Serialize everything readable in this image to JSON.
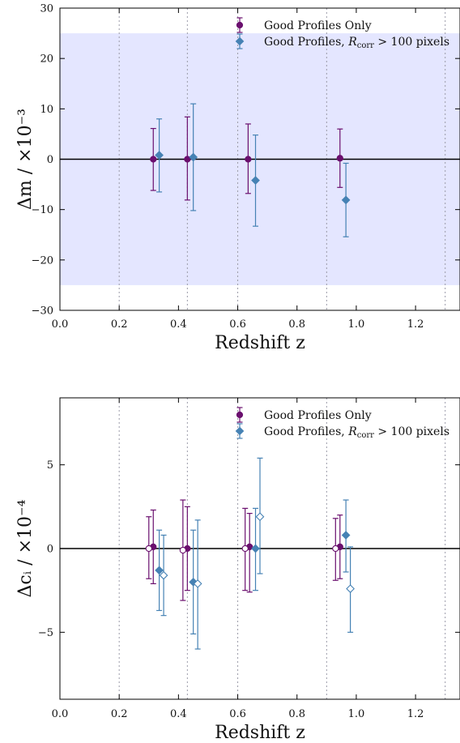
{
  "colors": {
    "purple": "#6a0f6e",
    "blue": "#4682b4",
    "band": "#e4e6ff",
    "vline": "#9a9aa8",
    "zero": "#000000"
  },
  "chart_data": [
    {
      "type": "scatter",
      "xlabel": "Redshift z",
      "ylabel": "Δm / ×10⁻³",
      "xlim": [
        0.0,
        1.35
      ],
      "ylim": [
        -30,
        30
      ],
      "xticks": [
        "0.0",
        "0.2",
        "0.4",
        "0.6",
        "0.8",
        "1.0",
        "1.2"
      ],
      "yticks": [
        "30",
        "20",
        "10",
        "0",
        "−10",
        "−20",
        "−30"
      ],
      "band": [
        -25,
        25
      ],
      "zero_line": 0,
      "vlines": [
        0.2,
        0.43,
        0.6,
        0.9,
        1.3
      ],
      "legend_position": "top-right",
      "legend": [
        "Good Profiles Only",
        "Good Profiles, R_corr > 100 pixels"
      ],
      "series": [
        {
          "name": "Good Profiles Only",
          "marker": "circle",
          "filled": true,
          "color": "purple",
          "points": [
            {
              "x": 0.315,
              "y": 0.0,
              "lo": -6.2,
              "hi": 6.1
            },
            {
              "x": 0.43,
              "y": 0.0,
              "lo": -8.1,
              "hi": 8.4
            },
            {
              "x": 0.635,
              "y": 0.0,
              "lo": -6.8,
              "hi": 7.0
            },
            {
              "x": 0.945,
              "y": 0.2,
              "lo": -5.6,
              "hi": 6.0
            }
          ]
        },
        {
          "name": "Good Profiles, R_corr > 100 pixels",
          "marker": "diamond",
          "filled": true,
          "color": "blue",
          "points": [
            {
              "x": 0.335,
              "y": 0.8,
              "lo": -6.5,
              "hi": 8.0
            },
            {
              "x": 0.45,
              "y": 0.4,
              "lo": -10.2,
              "hi": 11.0
            },
            {
              "x": 0.66,
              "y": -4.2,
              "lo": -13.3,
              "hi": 4.8
            },
            {
              "x": 0.965,
              "y": -8.1,
              "lo": -15.4,
              "hi": -0.8
            }
          ]
        }
      ]
    },
    {
      "type": "scatter",
      "xlabel": "Redshift z",
      "ylabel": "Δcᵢ / ×10⁻⁴",
      "xlim": [
        0.0,
        1.35
      ],
      "ylim": [
        -9,
        9
      ],
      "xticks": [
        "0.0",
        "0.2",
        "0.4",
        "0.6",
        "0.8",
        "1.0",
        "1.2"
      ],
      "yticks": [
        "5",
        "0",
        "−5"
      ],
      "zero_line": 0,
      "vlines": [
        0.2,
        0.43,
        0.6,
        0.9,
        1.3
      ],
      "legend_position": "top-right",
      "legend": [
        "Good Profiles Only",
        "Good Profiles, R_corr > 100 pixels"
      ],
      "series": [
        {
          "name": "Good Profiles Only",
          "marker": "circle",
          "filled": true,
          "color": "purple",
          "points": [
            {
              "x": 0.315,
              "y": 0.1,
              "lo": -2.1,
              "hi": 2.3
            },
            {
              "x": 0.43,
              "y": 0.0,
              "lo": -2.5,
              "hi": 2.5
            },
            {
              "x": 0.64,
              "y": 0.1,
              "lo": -2.6,
              "hi": 2.1
            },
            {
              "x": 0.945,
              "y": 0.1,
              "lo": -1.8,
              "hi": 2.0
            }
          ]
        },
        {
          "name": "Good Profiles Only (open)",
          "marker": "circle",
          "filled": false,
          "color": "purple",
          "points": [
            {
              "x": 0.3,
              "y": 0.0,
              "lo": -1.8,
              "hi": 1.9
            },
            {
              "x": 0.415,
              "y": -0.1,
              "lo": -3.1,
              "hi": 2.9
            },
            {
              "x": 0.625,
              "y": 0.0,
              "lo": -2.5,
              "hi": 2.4
            },
            {
              "x": 0.93,
              "y": 0.0,
              "lo": -1.9,
              "hi": 1.8
            }
          ]
        },
        {
          "name": "Good Profiles, R_corr > 100 pixels",
          "marker": "diamond",
          "filled": true,
          "color": "blue",
          "points": [
            {
              "x": 0.335,
              "y": -1.3,
              "lo": -3.7,
              "hi": 1.1
            },
            {
              "x": 0.45,
              "y": -2.0,
              "lo": -5.1,
              "hi": 1.1
            },
            {
              "x": 0.66,
              "y": 0.0,
              "lo": -2.5,
              "hi": 2.4
            },
            {
              "x": 0.965,
              "y": 0.8,
              "lo": -1.4,
              "hi": 2.9
            }
          ]
        },
        {
          "name": "Good Profiles, R_corr > 100 pixels (open)",
          "marker": "diamond",
          "filled": false,
          "color": "blue",
          "points": [
            {
              "x": 0.35,
              "y": -1.6,
              "lo": -4.0,
              "hi": 0.8
            },
            {
              "x": 0.465,
              "y": -2.1,
              "lo": -6.0,
              "hi": 1.7
            },
            {
              "x": 0.675,
              "y": 1.9,
              "lo": -1.5,
              "hi": 5.4
            },
            {
              "x": 0.98,
              "y": -2.4,
              "lo": -5.0,
              "hi": 0.1
            }
          ]
        }
      ]
    }
  ]
}
